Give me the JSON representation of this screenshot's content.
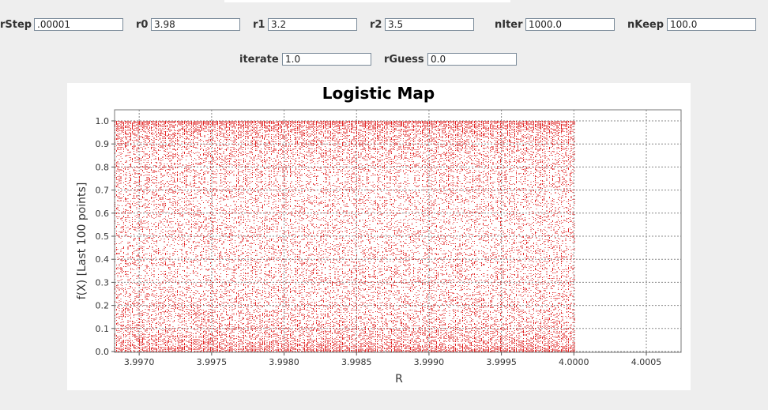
{
  "controls": {
    "rstep": {
      "label": "rStep",
      "value": ".00001"
    },
    "r0": {
      "label": "r0",
      "value": "3.98"
    },
    "r1": {
      "label": "r1",
      "value": "3.2"
    },
    "r2": {
      "label": "r2",
      "value": "3.5"
    },
    "niter": {
      "label": "nIter",
      "value": "1000.0"
    },
    "nkeep": {
      "label": "nKeep",
      "value": "100.0"
    },
    "iterate": {
      "label": "iterate",
      "value": "1.0"
    },
    "rguess": {
      "label": "rGuess",
      "value": "0.0"
    }
  },
  "chart_data": {
    "type": "scatter",
    "title": "Logistic Map",
    "xlabel": "R",
    "ylabel": "f(X) [Last 100 points]",
    "xlim": [
      3.99683,
      4.00074
    ],
    "ylim": [
      0.0,
      1.0
    ],
    "x_ticks": [
      "3.9970",
      "3.9975",
      "3.9980",
      "3.9985",
      "3.9990",
      "3.9995",
      "4.0000",
      "4.0005"
    ],
    "y_ticks": [
      "0.0",
      "0.1",
      "0.2",
      "0.3",
      "0.4",
      "0.5",
      "0.6",
      "0.7",
      "0.8",
      "0.9",
      "1.0"
    ],
    "x_tick_values": [
      3.997,
      3.9975,
      3.998,
      3.9985,
      3.999,
      3.9995,
      4.0,
      4.0005
    ],
    "y_tick_values": [
      0.0,
      0.1,
      0.2,
      0.3,
      0.4,
      0.5,
      0.6,
      0.7,
      0.8,
      0.9,
      1.0
    ],
    "r_start": 3.99683,
    "r_end": 4.0,
    "r_step": 1e-05,
    "points_per_r": 100,
    "grid": true,
    "point_color": "#e02020"
  }
}
